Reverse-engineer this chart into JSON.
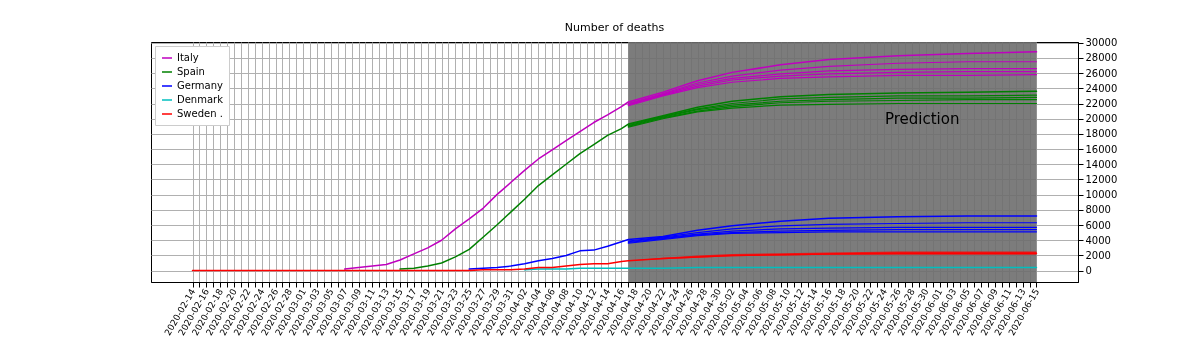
{
  "chart_data": {
    "type": "line",
    "title": "Number of deaths",
    "xlim": [
      "2020-02-08",
      "2020-06-21"
    ],
    "xticks": [
      "2020-02-14",
      {
        "value": "2020-02-15",
        "label": null
      },
      "2020-02-16",
      {
        "value": "2020-02-17",
        "label": null
      },
      "2020-02-18",
      {
        "value": "2020-02-19",
        "label": null
      },
      "2020-02-20",
      {
        "value": "2020-02-21",
        "label": null
      },
      "2020-02-22",
      {
        "value": "2020-02-23",
        "label": null
      },
      "2020-02-24",
      {
        "value": "2020-02-25",
        "label": null
      },
      "2020-02-26",
      {
        "value": "2020-02-27",
        "label": null
      },
      "2020-02-28",
      {
        "value": "2020-02-29",
        "label": null
      },
      "2020-03-01",
      {
        "value": "2020-03-02",
        "label": null
      },
      "2020-03-03",
      {
        "value": "2020-03-04",
        "label": null
      },
      "2020-03-05",
      {
        "value": "2020-03-06",
        "label": null
      },
      "2020-03-07",
      {
        "value": "2020-03-08",
        "label": null
      },
      "2020-03-09",
      {
        "value": "2020-03-10",
        "label": null
      },
      "2020-03-11",
      {
        "value": "2020-03-12",
        "label": null
      },
      "2020-03-13",
      {
        "value": "2020-03-14",
        "label": null
      },
      "2020-03-15",
      {
        "value": "2020-03-16",
        "label": null
      },
      "2020-03-17",
      {
        "value": "2020-03-18",
        "label": null
      },
      "2020-03-19",
      {
        "value": "2020-03-20",
        "label": null
      },
      "2020-03-21",
      {
        "value": "2020-03-22",
        "label": null
      },
      "2020-03-23",
      {
        "value": "2020-03-24",
        "label": null
      },
      "2020-03-25",
      {
        "value": "2020-03-26",
        "label": null
      },
      "2020-03-27",
      {
        "value": "2020-03-28",
        "label": null
      },
      "2020-03-29",
      {
        "value": "2020-03-30",
        "label": null
      },
      "2020-03-31",
      {
        "value": "2020-04-01",
        "label": null
      },
      "2020-04-02",
      {
        "value": "2020-04-03",
        "label": null
      },
      "2020-04-04",
      {
        "value": "2020-04-05",
        "label": null
      },
      "2020-04-06",
      {
        "value": "2020-04-07",
        "label": null
      },
      "2020-04-08",
      {
        "value": "2020-04-09",
        "label": null
      },
      "2020-04-10",
      {
        "value": "2020-04-11",
        "label": null
      },
      "2020-04-12",
      {
        "value": "2020-04-13",
        "label": null
      },
      "2020-04-14",
      {
        "value": "2020-04-15",
        "label": null
      },
      "2020-04-16",
      {
        "value": "2020-04-17",
        "label": null
      },
      "2020-04-18",
      {
        "value": "2020-04-19",
        "label": null
      },
      "2020-04-20",
      {
        "value": "2020-04-21",
        "label": null
      },
      "2020-04-22",
      {
        "value": "2020-04-23",
        "label": null
      },
      "2020-04-24",
      {
        "value": "2020-04-25",
        "label": null
      },
      "2020-04-26",
      {
        "value": "2020-04-27",
        "label": null
      },
      "2020-04-28",
      {
        "value": "2020-04-29",
        "label": null
      },
      "2020-04-30",
      {
        "value": "2020-05-01",
        "label": null
      },
      "2020-05-02",
      {
        "value": "2020-05-03",
        "label": null
      },
      "2020-05-04",
      {
        "value": "2020-05-05",
        "label": null
      },
      "2020-05-06",
      {
        "value": "2020-05-07",
        "label": null
      },
      "2020-05-08",
      {
        "value": "2020-05-09",
        "label": null
      },
      "2020-05-10",
      {
        "value": "2020-05-11",
        "label": null
      },
      "2020-05-12",
      {
        "value": "2020-05-13",
        "label": null
      },
      "2020-05-14",
      {
        "value": "2020-05-15",
        "label": null
      },
      "2020-05-16",
      {
        "value": "2020-05-17",
        "label": null
      },
      "2020-05-18",
      {
        "value": "2020-05-19",
        "label": null
      },
      "2020-05-20",
      {
        "value": "2020-05-21",
        "label": null
      },
      "2020-05-22",
      {
        "value": "2020-05-23",
        "label": null
      },
      "2020-05-24",
      {
        "value": "2020-05-25",
        "label": null
      },
      "2020-05-26",
      {
        "value": "2020-05-27",
        "label": null
      },
      "2020-05-28",
      {
        "value": "2020-05-29",
        "label": null
      },
      "2020-05-30",
      {
        "value": "2020-05-31",
        "label": null
      },
      "2020-06-01",
      {
        "value": "2020-06-02",
        "label": null
      },
      "2020-06-03",
      {
        "value": "2020-06-04",
        "label": null
      },
      "2020-06-05",
      {
        "value": "2020-06-06",
        "label": null
      },
      "2020-06-07",
      {
        "value": "2020-06-08",
        "label": null
      },
      "2020-06-09",
      {
        "value": "2020-06-10",
        "label": null
      },
      "2020-06-11",
      {
        "value": "2020-06-12",
        "label": null
      },
      "2020-06-13",
      {
        "value": "2020-06-14",
        "label": null
      },
      "2020-06-15"
    ],
    "ylim": [
      -1500,
      30100
    ],
    "yticks": [
      0,
      2000,
      4000,
      6000,
      8000,
      10000,
      12000,
      14000,
      16000,
      18000,
      20000,
      22000,
      24000,
      26000,
      28000,
      30000
    ],
    "grid": true,
    "legend": "top left",
    "bands": [
      {
        "axis": "x",
        "from": "2020-04-17",
        "to": "2020-06-15",
        "label": "Prediction",
        "color": "#6e6e6e"
      }
    ],
    "series": [
      {
        "name": "Italy",
        "color": "#bf00bf",
        "x": [
          "2020-03-07",
          "2020-03-09",
          "2020-03-11",
          "2020-03-13",
          "2020-03-15",
          "2020-03-17",
          "2020-03-19",
          "2020-03-21",
          "2020-03-23",
          "2020-03-25",
          "2020-03-27",
          "2020-03-29",
          "2020-03-31",
          "2020-04-02",
          "2020-04-04",
          "2020-04-06",
          "2020-04-08",
          "2020-04-10",
          "2020-04-12",
          "2020-04-14",
          "2020-04-16",
          "2020-04-17",
          "2020-04-22",
          "2020-04-27",
          "2020-05-02",
          "2020-05-09",
          "2020-05-16",
          "2020-05-26",
          "2020-06-05",
          "2020-06-15"
        ],
        "values": [
          200,
          400,
          600,
          800,
          1400,
          2200,
          3000,
          4000,
          5500,
          6800,
          8200,
          10000,
          11600,
          13200,
          14700,
          15900,
          17100,
          18300,
          19500,
          20500,
          21600,
          22200,
          23500,
          25000,
          26100,
          27100,
          27800,
          28300,
          28600,
          28800
        ]
      },
      {
        "name": "Spain",
        "color": "#008000",
        "x": [
          "2020-03-15",
          "2020-03-17",
          "2020-03-19",
          "2020-03-21",
          "2020-03-23",
          "2020-03-25",
          "2020-03-27",
          "2020-03-29",
          "2020-03-31",
          "2020-04-02",
          "2020-04-04",
          "2020-04-06",
          "2020-04-08",
          "2020-04-10",
          "2020-04-12",
          "2020-04-14",
          "2020-04-16",
          "2020-04-17",
          "2020-04-22",
          "2020-04-27",
          "2020-05-02",
          "2020-05-09",
          "2020-05-16",
          "2020-05-26",
          "2020-06-05",
          "2020-06-15"
        ],
        "values": [
          200,
          300,
          600,
          1000,
          1800,
          2800,
          4400,
          6000,
          7700,
          9400,
          11200,
          12600,
          14000,
          15400,
          16600,
          17800,
          18700,
          19300,
          20400,
          21500,
          22300,
          22900,
          23200,
          23400,
          23500,
          23600
        ]
      },
      {
        "name": "Germany",
        "color": "#0000ff",
        "x": [
          "2020-03-25",
          "2020-03-27",
          "2020-03-29",
          "2020-03-31",
          "2020-04-02",
          "2020-04-04",
          "2020-04-06",
          "2020-04-08",
          "2020-04-10",
          "2020-04-12",
          "2020-04-14",
          "2020-04-16",
          "2020-04-17",
          "2020-04-22",
          "2020-04-27",
          "2020-05-02",
          "2020-05-09",
          "2020-05-16",
          "2020-05-26",
          "2020-06-05",
          "2020-06-15"
        ],
        "values": [
          200,
          300,
          400,
          600,
          900,
          1300,
          1600,
          2000,
          2600,
          2700,
          3200,
          3800,
          4100,
          4500,
          5300,
          5900,
          6500,
          6900,
          7100,
          7200,
          7200
        ]
      },
      {
        "name": "Denmark",
        "color": "#00bfbf",
        "x": [
          "2020-04-02",
          "2020-04-04",
          "2020-04-06",
          "2020-04-08",
          "2020-04-10",
          "2020-04-12",
          "2020-04-14",
          "2020-04-16",
          "2020-04-17",
          "2020-04-22",
          "2020-04-27",
          "2020-05-02",
          "2020-05-09",
          "2020-05-16",
          "2020-05-26",
          "2020-06-05",
          "2020-06-15"
        ],
        "values": [
          100,
          200,
          200,
          200,
          300,
          300,
          300,
          300,
          300,
          300,
          400,
          400,
          400,
          400,
          400,
          400,
          400
        ]
      },
      {
        "name": "Sweden .",
        "color": "#ff0000",
        "x": [
          "2020-02-14",
          "2020-02-16",
          "2020-02-18",
          "2020-02-20",
          "2020-02-22",
          "2020-02-24",
          "2020-02-26",
          "2020-02-28",
          "2020-03-01",
          "2020-03-03",
          "2020-03-05",
          "2020-03-07",
          "2020-03-09",
          "2020-03-11",
          "2020-03-13",
          "2020-03-15",
          "2020-03-17",
          "2020-03-19",
          "2020-03-21",
          "2020-03-23",
          "2020-03-25",
          "2020-03-27",
          "2020-03-29",
          "2020-03-31",
          "2020-04-02",
          "2020-04-04",
          "2020-04-06",
          "2020-04-08",
          "2020-04-10",
          "2020-04-12",
          "2020-04-14",
          "2020-04-16",
          "2020-04-17",
          "2020-04-22",
          "2020-04-27",
          "2020-05-02",
          "2020-05-09",
          "2020-05-16",
          "2020-05-26",
          "2020-06-05",
          "2020-06-15"
        ],
        "values": [
          0,
          0,
          0,
          0,
          0,
          0,
          0,
          0,
          0,
          0,
          0,
          0,
          0,
          0,
          0,
          0,
          0,
          0,
          0,
          0,
          0,
          100,
          100,
          100,
          200,
          400,
          400,
          600,
          800,
          900,
          900,
          1200,
          1300,
          1600,
          1800,
          2000,
          2100,
          2200,
          2300,
          2300,
          2300
        ],
        "lower": [
          null,
          null,
          null,
          null,
          null,
          null,
          null,
          null,
          null,
          null,
          null,
          null,
          null,
          null,
          null,
          null,
          null,
          null,
          null,
          null,
          null,
          null,
          null,
          null,
          null,
          null,
          null,
          null,
          null,
          null,
          null,
          null,
          1300,
          1500,
          1700,
          1900,
          2000,
          2100,
          2100,
          2100,
          2100
        ],
        "upper": [
          null,
          null,
          null,
          null,
          null,
          null,
          null,
          null,
          null,
          null,
          null,
          null,
          null,
          null,
          null,
          null,
          null,
          null,
          null,
          null,
          null,
          null,
          null,
          null,
          null,
          null,
          null,
          null,
          null,
          null,
          null,
          null,
          1300,
          1700,
          2000,
          2200,
          2300,
          2400,
          2500,
          2500,
          2500
        ]
      },
      {
        "color": "#bf00bf",
        "x": [
          "2020-04-17",
          "2020-04-22",
          "2020-04-27",
          "2020-05-02",
          "2020-05-09",
          "2020-05-16",
          "2020-05-26",
          "2020-06-05",
          "2020-06-15"
        ],
        "values": [
          22000,
          23300,
          24700,
          25600,
          26400,
          26900,
          27300,
          27500,
          27500
        ]
      },
      {
        "color": "#bf00bf",
        "x": [
          "2020-04-17",
          "2020-04-22",
          "2020-04-27",
          "2020-05-02",
          "2020-05-09",
          "2020-05-16",
          "2020-05-26",
          "2020-06-05",
          "2020-06-15"
        ],
        "values": [
          21900,
          23200,
          24500,
          25300,
          25900,
          26300,
          26500,
          26600,
          26600
        ]
      },
      {
        "color": "#bf00bf",
        "x": [
          "2020-04-17",
          "2020-04-22",
          "2020-04-27",
          "2020-05-02",
          "2020-05-09",
          "2020-05-16",
          "2020-05-26",
          "2020-06-05",
          "2020-06-15"
        ],
        "values": [
          21800,
          23100,
          24300,
          25100,
          25600,
          25900,
          26100,
          26200,
          26200
        ]
      },
      {
        "color": "#bf00bf",
        "x": [
          "2020-04-17",
          "2020-04-22",
          "2020-04-27",
          "2020-05-02",
          "2020-05-09",
          "2020-05-16",
          "2020-05-26",
          "2020-06-05",
          "2020-06-15"
        ],
        "values": [
          21700,
          23000,
          24100,
          24800,
          25300,
          25500,
          25700,
          25700,
          25800
        ]
      },
      {
        "color": "#008000",
        "x": [
          "2020-04-17",
          "2020-04-22",
          "2020-04-27",
          "2020-05-02",
          "2020-05-09",
          "2020-05-16",
          "2020-05-26",
          "2020-06-05",
          "2020-06-15"
        ],
        "values": [
          19200,
          20300,
          21300,
          22000,
          22600,
          22800,
          23000,
          23000,
          23100
        ]
      },
      {
        "color": "#008000",
        "x": [
          "2020-04-17",
          "2020-04-22",
          "2020-04-27",
          "2020-05-02",
          "2020-05-09",
          "2020-05-16",
          "2020-05-26",
          "2020-06-05",
          "2020-06-15"
        ],
        "values": [
          19100,
          20200,
          21200,
          21800,
          22300,
          22500,
          22700,
          22700,
          22800
        ]
      },
      {
        "color": "#008000",
        "x": [
          "2020-04-17",
          "2020-04-22",
          "2020-04-27",
          "2020-05-02",
          "2020-05-09",
          "2020-05-16",
          "2020-05-26",
          "2020-06-05",
          "2020-06-15"
        ],
        "values": [
          19000,
          20100,
          21000,
          21600,
          22100,
          22300,
          22400,
          22500,
          22500
        ]
      },
      {
        "color": "#008000",
        "x": [
          "2020-04-17",
          "2020-04-22",
          "2020-04-27",
          "2020-05-02",
          "2020-05-09",
          "2020-05-16",
          "2020-05-26",
          "2020-06-05",
          "2020-06-15"
        ],
        "values": [
          18900,
          20000,
          20900,
          21400,
          21800,
          21900,
          22000,
          22000,
          22000
        ]
      },
      {
        "color": "#0000ff",
        "x": [
          "2020-04-17",
          "2020-04-22",
          "2020-04-27",
          "2020-05-02",
          "2020-05-09",
          "2020-05-16",
          "2020-05-26",
          "2020-06-05",
          "2020-06-15"
        ],
        "values": [
          3900,
          4400,
          5000,
          5500,
          5900,
          6100,
          6200,
          6300,
          6300
        ]
      },
      {
        "color": "#0000ff",
        "x": [
          "2020-04-17",
          "2020-04-22",
          "2020-04-27",
          "2020-05-02",
          "2020-05-09",
          "2020-05-16",
          "2020-05-26",
          "2020-06-05",
          "2020-06-15"
        ],
        "values": [
          3800,
          4300,
          4800,
          5200,
          5500,
          5600,
          5700,
          5700,
          5700
        ]
      },
      {
        "color": "#0000ff",
        "x": [
          "2020-04-17",
          "2020-04-22",
          "2020-04-27",
          "2020-05-02",
          "2020-05-09",
          "2020-05-16",
          "2020-05-26",
          "2020-06-05",
          "2020-06-15"
        ],
        "values": [
          3700,
          4200,
          4700,
          5000,
          5200,
          5300,
          5400,
          5400,
          5400
        ]
      },
      {
        "color": "#0000ff",
        "x": [
          "2020-04-17",
          "2020-04-22",
          "2020-04-27",
          "2020-05-02",
          "2020-05-09",
          "2020-05-16",
          "2020-05-26",
          "2020-06-05",
          "2020-06-15"
        ],
        "values": [
          3600,
          4100,
          4600,
          4900,
          5000,
          5100,
          5100,
          5100,
          5100
        ]
      }
    ]
  }
}
